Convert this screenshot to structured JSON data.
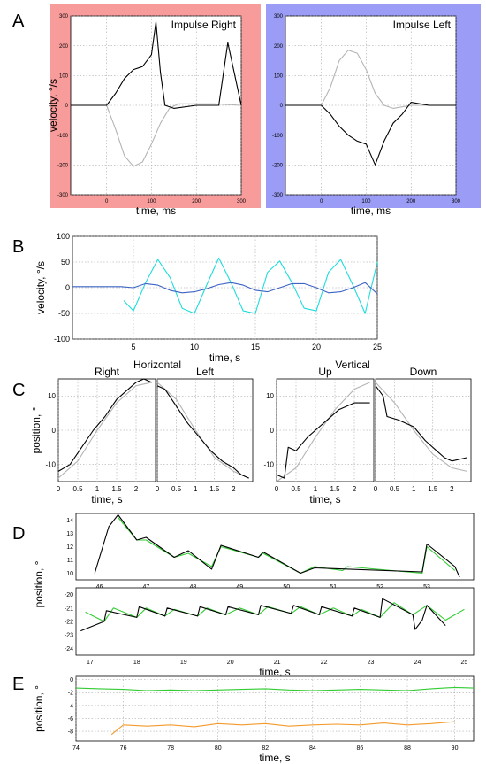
{
  "panels": {
    "A": "A",
    "B": "B",
    "C": "C",
    "D": "D",
    "E": "E"
  },
  "colors": {
    "pink_bg": "#f79b9b",
    "blue_bg": "#9a9cf5",
    "cyan": "#1fdcdc",
    "dark_blue": "#3b63c4",
    "green": "#33cc33",
    "orange": "#f39a2c",
    "black": "#000000",
    "gray": "#b4b4b4",
    "grid": "#9a9a9a"
  },
  "chart_data": [
    {
      "id": "A-right",
      "type": "line",
      "title": "Impulse Right",
      "xlabel": "time, ms",
      "ylabel": "velocity, °/s",
      "xlim": [
        -80,
        300
      ],
      "ylim": [
        -300,
        300
      ],
      "xticks": [
        0,
        100,
        200,
        300
      ],
      "yticks": [
        -300,
        -200,
        -100,
        0,
        100,
        200,
        300
      ],
      "grid": true,
      "series": [
        {
          "role": "head",
          "color": "gray",
          "x": [
            -80,
            0,
            20,
            40,
            60,
            80,
            100,
            120,
            140,
            160,
            200,
            240,
            300
          ],
          "y": [
            0,
            0,
            -80,
            -170,
            -205,
            -190,
            -130,
            -60,
            -10,
            5,
            5,
            5,
            0
          ]
        },
        {
          "role": "eye",
          "color": "black",
          "x": [
            -80,
            0,
            20,
            40,
            60,
            80,
            100,
            110,
            120,
            130,
            150,
            200,
            250,
            270,
            300
          ],
          "y": [
            0,
            0,
            40,
            90,
            120,
            130,
            170,
            280,
            110,
            0,
            -10,
            0,
            0,
            210,
            0
          ]
        }
      ]
    },
    {
      "id": "A-left",
      "type": "line",
      "title": "Impulse Left",
      "xlabel": "time, ms",
      "xlim": [
        -80,
        300
      ],
      "ylim": [
        -300,
        300
      ],
      "xticks": [
        0,
        100,
        200,
        300
      ],
      "yticks": [
        -300,
        -200,
        -100,
        0,
        100,
        200,
        300
      ],
      "grid": true,
      "series": [
        {
          "role": "head",
          "color": "gray",
          "x": [
            -80,
            0,
            20,
            40,
            60,
            80,
            100,
            120,
            140,
            160,
            200,
            300
          ],
          "y": [
            0,
            0,
            60,
            150,
            185,
            175,
            120,
            40,
            0,
            -10,
            0,
            0
          ]
        },
        {
          "role": "eye",
          "color": "black",
          "x": [
            -80,
            0,
            20,
            40,
            60,
            80,
            100,
            120,
            140,
            160,
            180,
            200,
            240,
            300
          ],
          "y": [
            0,
            0,
            -30,
            -70,
            -100,
            -120,
            -130,
            -200,
            -120,
            -60,
            -30,
            10,
            0,
            0
          ]
        }
      ]
    },
    {
      "id": "B",
      "type": "line",
      "ylabel": "velocity, °/s",
      "xlabel": "time, s",
      "xlim": [
        0,
        25
      ],
      "ylim": [
        -100,
        100
      ],
      "xticks": [
        5,
        10,
        15,
        20,
        25
      ],
      "yticks": [
        -100,
        -50,
        0,
        50,
        100
      ],
      "grid": true,
      "series": [
        {
          "role": "head",
          "color": "cyan",
          "x": [
            4.2,
            5,
            6,
            7,
            8,
            9,
            10,
            11,
            12,
            13,
            14,
            15,
            16,
            17,
            18,
            19,
            20,
            21,
            22,
            23,
            24,
            25
          ],
          "y": [
            -25,
            -45,
            10,
            55,
            20,
            -40,
            -50,
            5,
            58,
            10,
            -45,
            -50,
            30,
            52,
            10,
            -40,
            -45,
            30,
            55,
            5,
            -50,
            50
          ]
        },
        {
          "role": "eye",
          "color": "dark_blue",
          "x": [
            0,
            4,
            5,
            6,
            7,
            8,
            9,
            10,
            11,
            12,
            13,
            14,
            15,
            16,
            17,
            18,
            19,
            20,
            21,
            22,
            23,
            24,
            25
          ],
          "y": [
            2,
            2,
            0,
            8,
            5,
            -5,
            -10,
            -8,
            -2,
            6,
            10,
            5,
            -5,
            -8,
            0,
            8,
            8,
            0,
            -10,
            -8,
            0,
            10,
            -12
          ]
        }
      ]
    },
    {
      "id": "C-horizontal-right",
      "type": "line",
      "group": "Horizontal",
      "title": "Right",
      "xlabel": "time, s",
      "ylabel": "position, °",
      "xlim": [
        0,
        2.5
      ],
      "ylim": [
        -15,
        15
      ],
      "xticks": [
        0,
        0.5,
        1,
        1.5,
        2
      ],
      "yticks": [
        -10,
        0,
        10
      ],
      "grid": true,
      "series": [
        {
          "role": "target",
          "color": "gray",
          "x": [
            0,
            0.5,
            1,
            1.5,
            2,
            2.4
          ],
          "y": [
            -14,
            -9,
            0,
            8,
            13,
            14
          ]
        },
        {
          "role": "eye",
          "color": "black",
          "x": [
            0,
            0.3,
            0.6,
            0.9,
            1.2,
            1.5,
            1.8,
            2.0,
            2.2,
            2.4
          ],
          "y": [
            -12,
            -10,
            -5,
            0,
            4,
            9,
            12,
            14,
            15,
            14
          ]
        }
      ]
    },
    {
      "id": "C-horizontal-left",
      "type": "line",
      "group": "Horizontal",
      "title": "Left",
      "xlim": [
        0,
        2.5
      ],
      "ylim": [
        -15,
        15
      ],
      "xticks": [
        0,
        0.5,
        1,
        1.5,
        2
      ],
      "yticks": [
        -10,
        0,
        10
      ],
      "grid": true,
      "series": [
        {
          "role": "target",
          "color": "gray",
          "x": [
            0,
            0.5,
            1,
            1.5,
            2,
            2.4
          ],
          "y": [
            14,
            9,
            0,
            -8,
            -12,
            -14
          ]
        },
        {
          "role": "eye",
          "color": "black",
          "x": [
            0,
            0.2,
            0.5,
            0.8,
            1.1,
            1.4,
            1.7,
            2.0,
            2.2,
            2.4
          ],
          "y": [
            13,
            12,
            7,
            2,
            -2,
            -6,
            -9,
            -11,
            -13,
            -14
          ]
        }
      ]
    },
    {
      "id": "C-vertical-up",
      "type": "line",
      "group": "Vertical",
      "title": "Up",
      "xlabel": "time, s",
      "xlim": [
        0,
        2.5
      ],
      "ylim": [
        -15,
        15
      ],
      "xticks": [
        0,
        0.5,
        1,
        1.5,
        2
      ],
      "yticks": [
        -10,
        0,
        10
      ],
      "grid": true,
      "series": [
        {
          "role": "target",
          "color": "gray",
          "x": [
            0,
            0.5,
            1,
            1.5,
            2,
            2.4
          ],
          "y": [
            -15,
            -11,
            -2,
            6,
            12,
            14
          ]
        },
        {
          "role": "eye",
          "color": "black",
          "x": [
            0,
            0.2,
            0.3,
            0.5,
            0.8,
            1.0,
            1.3,
            1.6,
            2.0,
            2.4
          ],
          "y": [
            -13,
            -14,
            -5,
            -6,
            -2,
            0,
            3,
            6,
            8,
            8
          ]
        }
      ]
    },
    {
      "id": "C-vertical-down",
      "type": "line",
      "group": "Vertical",
      "title": "Down",
      "xlim": [
        0,
        2.5
      ],
      "ylim": [
        -15,
        15
      ],
      "xticks": [
        0,
        0.5,
        1,
        1.5,
        2
      ],
      "yticks": [
        -10,
        0,
        10
      ],
      "grid": true,
      "series": [
        {
          "role": "target",
          "color": "gray",
          "x": [
            0,
            0.5,
            1,
            1.5,
            2,
            2.4
          ],
          "y": [
            14,
            8,
            0,
            -7,
            -11,
            -12
          ]
        },
        {
          "role": "eye",
          "color": "black",
          "x": [
            0,
            0.2,
            0.3,
            0.6,
            1.0,
            1.3,
            1.6,
            1.8,
            2.0,
            2.4
          ],
          "y": [
            13,
            10,
            4,
            3,
            1,
            -3,
            -6,
            -8,
            -9,
            -8
          ]
        }
      ]
    },
    {
      "id": "D-top",
      "type": "line",
      "ylabel": "position, °",
      "xlim": [
        45.5,
        54
      ],
      "ylim": [
        9.5,
        14.5
      ],
      "xticks": [
        46,
        47,
        48,
        49,
        50,
        51,
        52,
        53
      ],
      "xticklabels": [
        "46",
        "47",
        "48",
        "49",
        "50",
        "51",
        "52",
        "53"
      ],
      "yticks": [
        10,
        11,
        12,
        13,
        14
      ],
      "grid": false,
      "series": [
        {
          "role": "slow",
          "color": "green",
          "x": [
            46.4,
            46.8,
            47.0,
            47.6,
            47.9,
            48.4,
            48.6,
            49.4,
            49.5,
            50.3,
            50.6,
            51.2,
            51.3,
            52.9,
            53.0,
            53.6
          ],
          "y": [
            14.2,
            12.5,
            12.5,
            11.2,
            11.5,
            10.5,
            12.0,
            11.2,
            11.5,
            10.0,
            10.5,
            10.2,
            10.5,
            10.0,
            12.0,
            10.2
          ]
        },
        {
          "role": "fast",
          "color": "black",
          "x": [
            45.9,
            46.2,
            46.4,
            46.8,
            47.0,
            47.6,
            47.9,
            48.4,
            48.6,
            49.4,
            49.5,
            50.3,
            50.6,
            52.9,
            53.0,
            53.6,
            53.7
          ],
          "y": [
            10.0,
            13.5,
            14.4,
            12.5,
            12.7,
            11.2,
            11.7,
            10.3,
            12.1,
            11.2,
            11.6,
            10.0,
            10.4,
            10.1,
            12.2,
            10.5,
            9.7
          ]
        }
      ]
    },
    {
      "id": "D-bottom",
      "type": "line",
      "xlabel": "time, s",
      "ylabel": "position, °",
      "xlim": [
        16.7,
        25.2
      ],
      "ylim": [
        -24.5,
        -19.5
      ],
      "xticks": [
        17,
        18,
        19,
        20,
        21,
        22,
        23,
        24,
        25
      ],
      "yticks": [
        -20,
        -21,
        -22,
        -23,
        -24
      ],
      "grid": false,
      "series": [
        {
          "role": "slow",
          "color": "green",
          "x": [
            16.9,
            17.3,
            17.5,
            18.0,
            18.2,
            18.6,
            18.8,
            19.3,
            19.5,
            19.9,
            20.2,
            20.6,
            20.8,
            21.3,
            21.5,
            21.9,
            22.2,
            22.6,
            22.8,
            23.2,
            23.5,
            23.9,
            24.2,
            24.6,
            25.0
          ],
          "y": [
            -21.3,
            -22.0,
            -21.0,
            -21.7,
            -21.0,
            -21.6,
            -21.1,
            -21.6,
            -21.0,
            -21.5,
            -21.0,
            -21.5,
            -20.9,
            -21.4,
            -20.9,
            -21.5,
            -21.0,
            -21.6,
            -21.1,
            -21.7,
            -20.6,
            -21.5,
            -20.8,
            -21.9,
            -21.1
          ]
        },
        {
          "role": "fast",
          "color": "black",
          "x": [
            16.8,
            17.3,
            17.35,
            18.0,
            18.05,
            18.6,
            18.65,
            19.3,
            19.35,
            19.9,
            19.95,
            20.6,
            20.65,
            21.3,
            21.35,
            21.9,
            21.95,
            22.6,
            22.65,
            23.2,
            23.25,
            23.9,
            23.95,
            24.1,
            24.2,
            24.6
          ],
          "y": [
            -22.7,
            -22.0,
            -21.2,
            -21.7,
            -20.9,
            -21.6,
            -21.0,
            -21.6,
            -20.9,
            -21.5,
            -20.9,
            -21.5,
            -20.8,
            -21.4,
            -20.8,
            -21.5,
            -20.9,
            -21.6,
            -21.0,
            -21.7,
            -20.3,
            -21.5,
            -22.6,
            -21.9,
            -20.8,
            -22.3
          ]
        }
      ]
    },
    {
      "id": "E",
      "type": "line",
      "xlabel": "time, s",
      "ylabel": "position, °",
      "xlim": [
        74,
        90.8
      ],
      "ylim": [
        -9.5,
        0.5
      ],
      "xticks": [
        74,
        76,
        78,
        80,
        82,
        84,
        86,
        88,
        90
      ],
      "yticks": [
        0,
        -2,
        -4,
        -6,
        -8
      ],
      "grid": true,
      "series": [
        {
          "role": "horizontal",
          "color": "green",
          "x": [
            74.0,
            75.0,
            76.0,
            77.0,
            78.0,
            79.0,
            80.0,
            81.0,
            82.0,
            83.0,
            84.0,
            85.0,
            86.0,
            87.0,
            88.0,
            89.0,
            90.0,
            90.8
          ],
          "y": [
            -1.3,
            -1.4,
            -1.5,
            -1.7,
            -1.6,
            -1.7,
            -1.6,
            -1.5,
            -1.4,
            -1.6,
            -1.7,
            -1.6,
            -1.5,
            -1.6,
            -1.7,
            -1.4,
            -1.2,
            -1.3
          ]
        },
        {
          "role": "vertical",
          "color": "orange",
          "x": [
            75.5,
            76.0,
            77.0,
            78.0,
            79.0,
            80.0,
            81.0,
            82.0,
            83.0,
            84.0,
            85.0,
            86.0,
            87.0,
            88.0,
            89.0,
            90.0
          ],
          "y": [
            -8.5,
            -7.0,
            -7.2,
            -7.0,
            -7.3,
            -6.8,
            -7.0,
            -6.8,
            -7.2,
            -7.0,
            -6.9,
            -7.0,
            -6.7,
            -7.0,
            -6.8,
            -6.5
          ]
        }
      ]
    }
  ]
}
